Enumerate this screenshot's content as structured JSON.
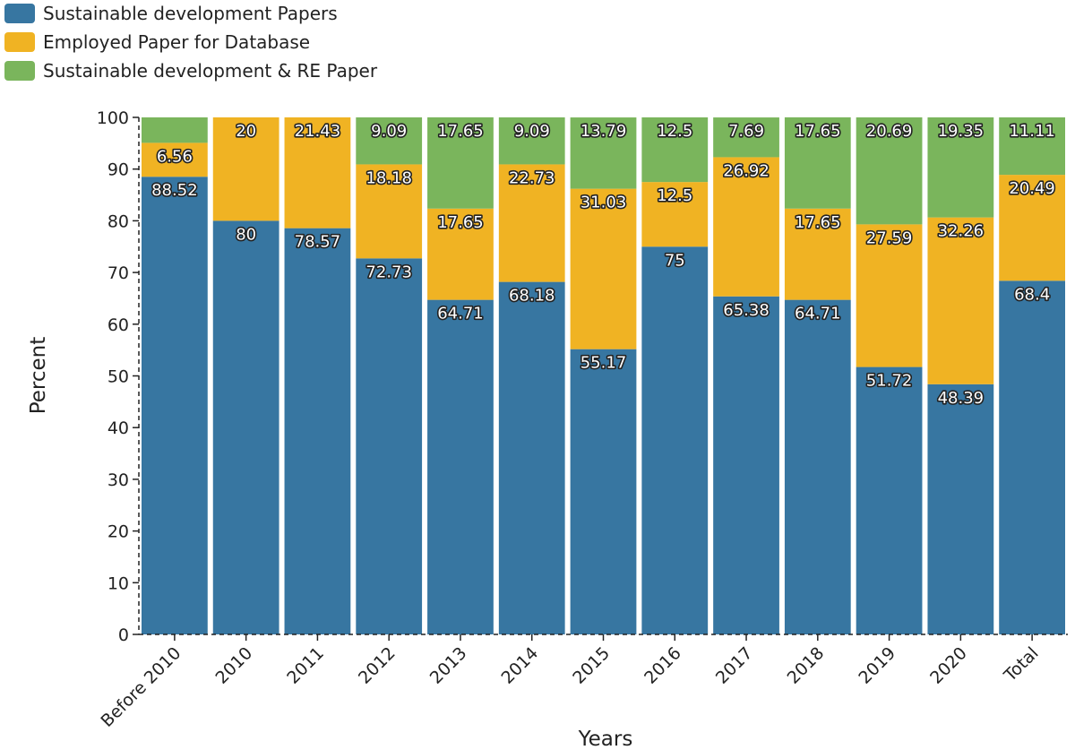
{
  "chart_data": {
    "type": "bar",
    "stacked": true,
    "title": "",
    "xlabel": "Years",
    "ylabel": "Percent",
    "ylim": [
      0,
      100
    ],
    "yticks": [
      0,
      10,
      20,
      30,
      40,
      50,
      60,
      70,
      80,
      90,
      100
    ],
    "legend_position": "top-left",
    "categories": [
      "Before 2010",
      "2010",
      "2011",
      "2012",
      "2013",
      "2014",
      "2015",
      "2016",
      "2017",
      "2018",
      "2019",
      "2020",
      "Total"
    ],
    "series": [
      {
        "name": "Sustainable development Papers",
        "color": "#3776a1",
        "values": [
          88.52,
          80,
          78.57,
          72.73,
          64.71,
          68.18,
          55.17,
          75,
          65.38,
          64.71,
          51.72,
          48.39,
          68.4
        ],
        "labels": [
          "88.52",
          "80",
          "78.57",
          "72.73",
          "64.71",
          "68.18",
          "55.17",
          "75",
          "65.38",
          "64.71",
          "51.72",
          "48.39",
          "68.4"
        ]
      },
      {
        "name": "Employed Paper for Database",
        "color": "#f0b323",
        "values": [
          6.56,
          20,
          21.43,
          18.18,
          17.65,
          22.73,
          31.03,
          12.5,
          26.92,
          17.65,
          27.59,
          32.26,
          20.49
        ],
        "labels": [
          "6.56",
          "20",
          "21.43",
          "18.18",
          "17.65",
          "22.73",
          "31.03",
          "12.5",
          "26.92",
          "17.65",
          "27.59",
          "32.26",
          "20.49"
        ]
      },
      {
        "name": "Sustainable development & RE Paper",
        "color": "#7ab55c",
        "values": [
          4.92,
          0,
          0,
          9.09,
          17.65,
          9.09,
          13.79,
          12.5,
          7.69,
          17.65,
          20.69,
          19.35,
          11.11
        ],
        "labels": [
          "",
          "",
          "",
          "9.09",
          "17.65",
          "9.09",
          "13.79",
          "12.5",
          "7.69",
          "17.65",
          "20.69",
          "19.35",
          "11.11"
        ]
      }
    ]
  }
}
